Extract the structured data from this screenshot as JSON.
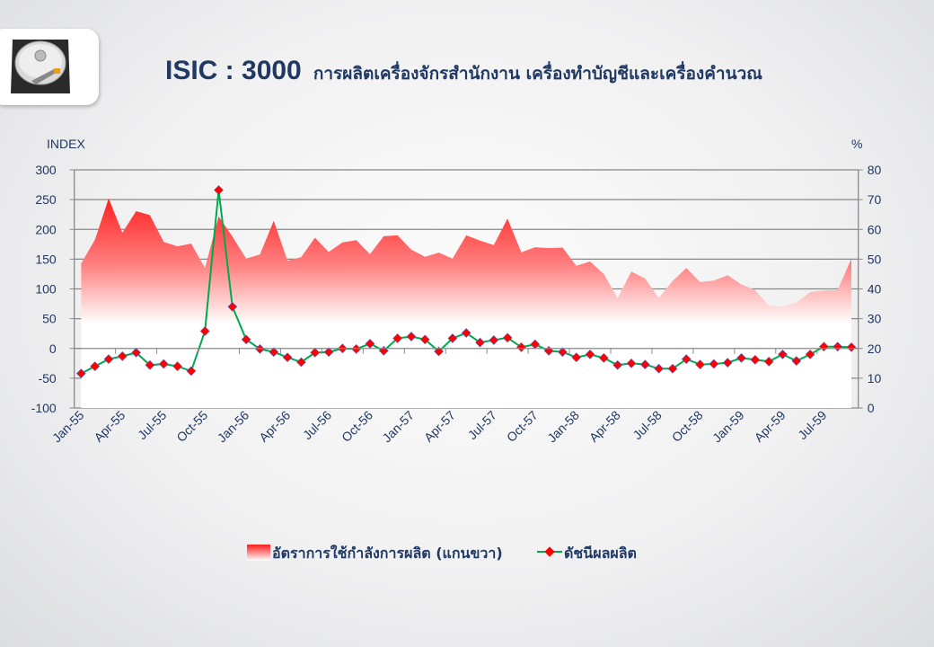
{
  "title": {
    "code": "ISIC : 3000",
    "description": "การผลิตเครื่องจักรสำนักงาน  เครื่องทำบัญชีและเครื่องคำนวณ"
  },
  "logo_icon": "hard-drive-icon",
  "chart_data": {
    "type": "area+line",
    "left_axis": {
      "label": "INDEX",
      "ylim": [
        -100,
        300
      ],
      "ticks": [
        "300",
        "250",
        "200",
        "150",
        "100",
        "50",
        "0",
        "-50",
        "-100"
      ]
    },
    "right_axis": {
      "label": "%",
      "ylim": [
        0,
        80
      ],
      "ticks": [
        "80",
        "70",
        "60",
        "50",
        "40",
        "30",
        "20",
        "10",
        "0"
      ]
    },
    "grid": true,
    "categories": [
      "Jan-55",
      "Feb-55",
      "Mar-55",
      "Apr-55",
      "May-55",
      "Jun-55",
      "Jul-55",
      "Aug-55",
      "Sep-55",
      "Oct-55",
      "Nov-55",
      "Dec-55",
      "Jan-56",
      "Feb-56",
      "Mar-56",
      "Apr-56",
      "May-56",
      "Jun-56",
      "Jul-56",
      "Aug-56",
      "Sep-56",
      "Oct-56",
      "Nov-56",
      "Dec-56",
      "Jan-57",
      "Feb-57",
      "Mar-57",
      "Apr-57",
      "May-57",
      "Jun-57",
      "Jul-57",
      "Aug-57",
      "Sep-57",
      "Oct-57",
      "Nov-57",
      "Dec-57",
      "Jan-58",
      "Feb-58",
      "Mar-58",
      "Apr-58",
      "May-58",
      "Jun-58",
      "Jul-58",
      "Aug-58",
      "Sep-58",
      "Oct-58",
      "Nov-58",
      "Dec-58",
      "Jan-59",
      "Feb-59",
      "Mar-59",
      "Apr-59",
      "May-59",
      "Jun-59",
      "Jul-59",
      "Aug-59",
      "Sep-59"
    ],
    "tick_labels": [
      "Jan-55",
      "Apr-55",
      "Jul-55",
      "Oct-55",
      "Jan-56",
      "Apr-56",
      "Jul-56",
      "Oct-56",
      "Jan-57",
      "Apr-57",
      "Jul-57",
      "Oct-57",
      "Jan-58",
      "Apr-58",
      "Jul-58",
      "Oct-58",
      "Jan-59",
      "Apr-59",
      "Jul-59"
    ],
    "series": [
      {
        "name": "อัตราการใช้กำลังการผลิต  (แกนขวา)",
        "type": "area",
        "axis": "right",
        "color": "#ff1a1a",
        "values": [
          48.5,
          56.5,
          70.4,
          58.9,
          66.1,
          64.8,
          55.8,
          54.3,
          55.2,
          47,
          64.3,
          57.6,
          50.2,
          51.6,
          62.9,
          49.5,
          50.7,
          57.2,
          52.4,
          55.6,
          56.4,
          51.7,
          57.7,
          58,
          53.2,
          50.8,
          52.2,
          50.2,
          58,
          56.2,
          54.7,
          63.6,
          52.3,
          54,
          53.7,
          53.9,
          47.8,
          49.2,
          45,
          36.9,
          45.8,
          43.5,
          36.9,
          42.7,
          47,
          42.3,
          42.8,
          44.6,
          41.5,
          39.6,
          34.4,
          34.1,
          35.4,
          38.9,
          39.5,
          39.6,
          50.2
        ]
      },
      {
        "name": "ดัชนีผลผลิต",
        "type": "line",
        "axis": "left",
        "color": "#00a94f",
        "marker_color": "#ff0000",
        "values": [
          -42,
          -30,
          -18,
          -13,
          -7,
          -28,
          -26,
          -30,
          -38,
          29,
          266,
          70,
          15,
          -1,
          -6,
          -15,
          -23,
          -7,
          -6,
          0,
          -1,
          8,
          -4,
          17,
          20,
          15,
          -5,
          17,
          26,
          10,
          14,
          18,
          2,
          7,
          -4,
          -6,
          -15,
          -10,
          -16,
          -28,
          -25,
          -27,
          -34,
          -34,
          -18,
          -27,
          -26,
          -24,
          -16,
          -19,
          -22,
          -10,
          -21,
          -10,
          3,
          3,
          2
        ]
      }
    ],
    "legend_placement": "bottom-center"
  }
}
